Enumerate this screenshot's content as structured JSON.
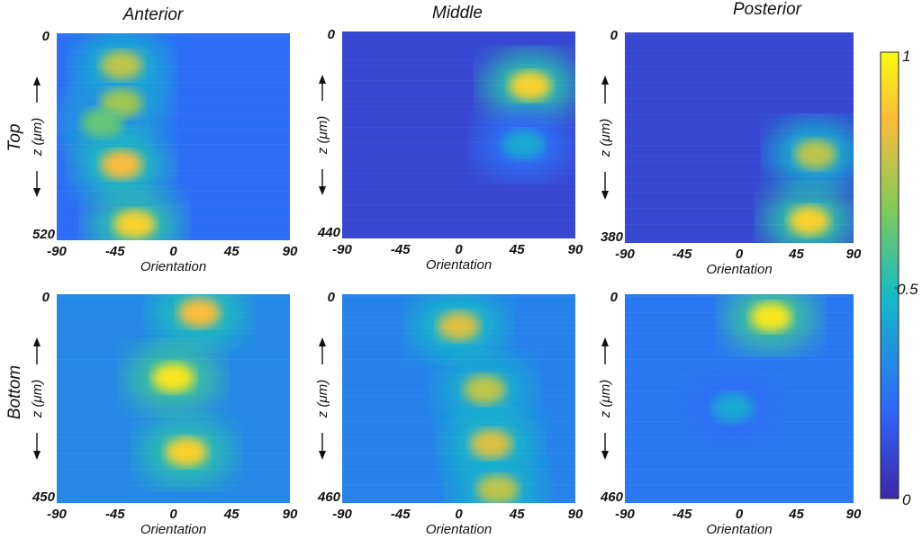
{
  "chart_data": [
    {
      "type": "heatmap",
      "column_title": "Anterior",
      "row_title": "Top",
      "ylabel": "z (μm)",
      "xlabel": "Orientation",
      "ytick_top": "0",
      "ytick_bottom": "520",
      "xticks": [
        "-90",
        "-45",
        "0",
        "45",
        "90"
      ],
      "xlim": [
        -90,
        90
      ],
      "ylim": [
        0,
        520
      ],
      "hotspots": [
        {
          "x": -40,
          "z": 80,
          "intensity": 0.75
        },
        {
          "x": -40,
          "z": 175,
          "intensity": 0.7
        },
        {
          "x": -55,
          "z": 225,
          "intensity": 0.6
        },
        {
          "x": -40,
          "z": 330,
          "intensity": 0.85
        },
        {
          "x": -30,
          "z": 480,
          "intensity": 0.9
        }
      ]
    },
    {
      "type": "heatmap",
      "column_title": "Middle",
      "ylabel": "z (μm)",
      "xlabel": "Orientation",
      "ytick_top": "0",
      "ytick_bottom": "440",
      "xticks": [
        "-90",
        "-45",
        "0",
        "45",
        "90"
      ],
      "xlim": [
        -90,
        90
      ],
      "ylim": [
        0,
        440
      ],
      "hotspots": [
        {
          "x": 55,
          "z": 115,
          "intensity": 0.9
        },
        {
          "x": 50,
          "z": 240,
          "intensity": 0.4
        }
      ]
    },
    {
      "type": "heatmap",
      "column_title": "Posterior",
      "ylabel": "z (μm)",
      "xlabel": "Orientation",
      "ytick_top": "0",
      "ytick_bottom": "380",
      "xticks": [
        "-90",
        "-45",
        "0",
        "45",
        "90"
      ],
      "xlim": [
        -90,
        90
      ],
      "ylim": [
        0,
        380
      ],
      "hotspots": [
        {
          "x": 60,
          "z": 220,
          "intensity": 0.75
        },
        {
          "x": 55,
          "z": 340,
          "intensity": 0.9
        }
      ]
    },
    {
      "type": "heatmap",
      "row_title": "Bottom",
      "ylabel": "z (μm)",
      "xlabel": "Orientation",
      "ytick_top": "0",
      "ytick_bottom": "450",
      "xticks": [
        "-90",
        "-45",
        "0",
        "45",
        "90"
      ],
      "xlim": [
        -90,
        90
      ],
      "ylim": [
        0,
        450
      ],
      "hotspots": [
        {
          "x": 20,
          "z": 40,
          "intensity": 0.85
        },
        {
          "x": 0,
          "z": 180,
          "intensity": 0.95
        },
        {
          "x": 10,
          "z": 340,
          "intensity": 0.9
        }
      ]
    },
    {
      "type": "heatmap",
      "ylabel": "z (μm)",
      "xlabel": "Orientation",
      "ytick_top": "0",
      "ytick_bottom": "460",
      "xticks": [
        "-90",
        "-45",
        "0",
        "45",
        "90"
      ],
      "xlim": [
        -90,
        90
      ],
      "ylim": [
        0,
        460
      ],
      "hotspots": [
        {
          "x": 0,
          "z": 70,
          "intensity": 0.8
        },
        {
          "x": 20,
          "z": 210,
          "intensity": 0.75
        },
        {
          "x": 25,
          "z": 330,
          "intensity": 0.8
        },
        {
          "x": 30,
          "z": 430,
          "intensity": 0.75
        }
      ]
    },
    {
      "type": "heatmap",
      "ylabel": "z (μm)",
      "xlabel": "Orientation",
      "ytick_top": "0",
      "ytick_bottom": "460",
      "xticks": [
        "-90",
        "-45",
        "0",
        "45",
        "90"
      ],
      "xlim": [
        -90,
        90
      ],
      "ylim": [
        0,
        460
      ],
      "hotspots": [
        {
          "x": 25,
          "z": 50,
          "intensity": 0.95
        },
        {
          "x": -5,
          "z": 250,
          "intensity": 0.4
        }
      ]
    }
  ],
  "colorbar": {
    "min": 0,
    "max": 1,
    "ticks": [
      "1",
      "0.5",
      "0"
    ],
    "colors": [
      "#3e26a8",
      "#2f68fb",
      "#14b9c7",
      "#80cb58",
      "#fbbc3b",
      "#f9fb0e"
    ]
  }
}
